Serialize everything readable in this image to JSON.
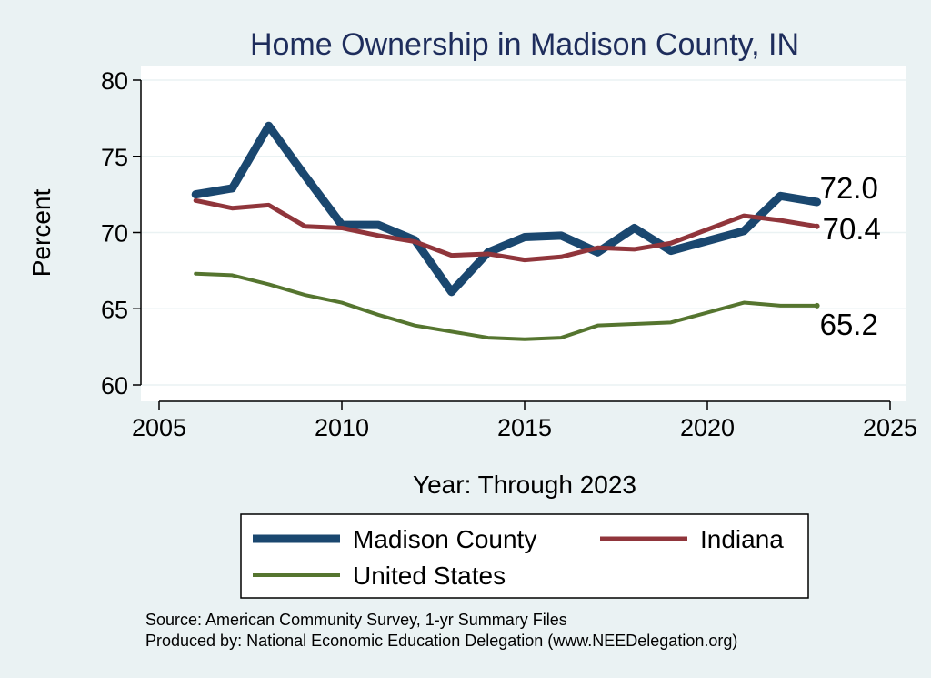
{
  "chart_data": {
    "type": "line",
    "title": "Home Ownership in Madison County, IN",
    "xlabel": "Year: Through 2023",
    "ylabel": "Percent",
    "xlim": [
      2005,
      2025
    ],
    "ylim": [
      60,
      80
    ],
    "xticks": [
      2005,
      2010,
      2015,
      2020,
      2025
    ],
    "yticks": [
      60,
      65,
      70,
      75,
      80
    ],
    "grid": true,
    "legend_position": "bottom",
    "series": [
      {
        "name": "Madison County",
        "color": "#1a476f",
        "x": [
          2006,
          2007,
          2008,
          2009,
          2010,
          2011,
          2012,
          2013,
          2014,
          2015,
          2016,
          2017,
          2018,
          2019,
          2021,
          2022,
          2023
        ],
        "values": [
          72.5,
          72.9,
          77.0,
          73.7,
          70.5,
          70.5,
          69.5,
          66.1,
          68.7,
          69.7,
          69.8,
          68.7,
          70.3,
          68.8,
          70.1,
          72.4,
          72.0
        ],
        "end_label": "72.0"
      },
      {
        "name": "Indiana",
        "color": "#90353b",
        "x": [
          2006,
          2007,
          2008,
          2009,
          2010,
          2011,
          2012,
          2013,
          2014,
          2015,
          2016,
          2017,
          2018,
          2019,
          2021,
          2022,
          2023
        ],
        "values": [
          72.1,
          71.6,
          71.8,
          70.4,
          70.3,
          69.8,
          69.4,
          68.5,
          68.6,
          68.2,
          68.4,
          69.0,
          68.9,
          69.3,
          71.1,
          70.8,
          70.4
        ],
        "end_label": "70.4"
      },
      {
        "name": "United States",
        "color": "#55752f",
        "x": [
          2006,
          2007,
          2008,
          2009,
          2010,
          2011,
          2012,
          2013,
          2014,
          2015,
          2016,
          2017,
          2018,
          2019,
          2021,
          2022,
          2023
        ],
        "values": [
          67.3,
          67.2,
          66.6,
          65.9,
          65.4,
          64.6,
          63.9,
          63.5,
          63.1,
          63.0,
          63.1,
          63.9,
          64.0,
          64.1,
          65.4,
          65.2,
          65.2
        ],
        "end_label": "65.2"
      }
    ],
    "notes": [
      "Source: American Community Survey, 1-yr Summary Files",
      "Produced by: National Economic Education Delegation (www.NEEDelegation.org)"
    ]
  }
}
